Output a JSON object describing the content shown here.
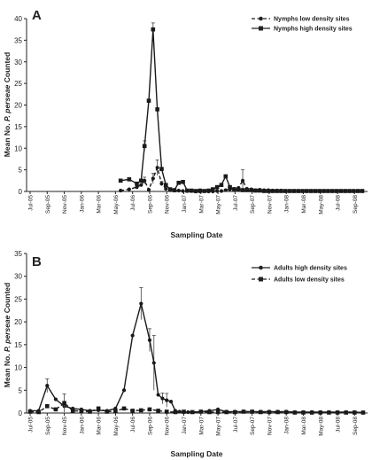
{
  "chart_data": [
    {
      "type": "line",
      "panel_label": "A",
      "xlabel": "Sampling Date",
      "ylabel_parts": [
        "Mean No. ",
        "P. perseae",
        " Counted"
      ],
      "ylim": [
        0,
        40
      ],
      "yticks": [
        0,
        5,
        10,
        15,
        20,
        25,
        30,
        35,
        40
      ],
      "x_tick_labels": [
        "Jul-05",
        "Sep-05",
        "Nov-05",
        "Jan-06",
        "Mar-06",
        "May-06",
        "Jul-06",
        "Sep-06",
        "Nov-06",
        "Jan-07",
        "Mar-07",
        "May-07",
        "Jul-07",
        "Sep-07",
        "Nov-07",
        "Jan-08",
        "Mar-08",
        "May-08",
        "Jul-08",
        "Sep-08"
      ],
      "legend_position": "top-right",
      "series": [
        {
          "name": "Nymphs low density sites",
          "style": "dashed",
          "marker": "circle",
          "x": [
            10.6,
            11.6,
            12.5,
            13.0,
            13.4,
            13.9,
            14.4,
            14.9,
            15.4,
            15.9,
            16.4,
            16.9,
            17.4,
            17.9,
            18.4,
            18.9,
            19.4,
            19.9,
            20.4,
            20.9,
            21.4,
            21.9,
            22.4,
            22.9,
            23.4,
            23.9,
            24.4,
            24.9,
            25.4,
            25.9,
            26.4,
            26.9,
            27.4,
            27.9,
            28.4,
            28.9,
            29.4,
            29.9,
            30.4,
            30.9,
            31.4,
            31.9,
            32.4,
            32.9,
            33.4,
            33.9,
            34.4,
            34.9,
            35.4,
            35.9,
            36.4,
            36.9,
            37.4,
            37.9,
            38.4,
            38.9
          ],
          "y": [
            0.2,
            0.5,
            1.0,
            1.5,
            2.5,
            0.4,
            3.0,
            5.5,
            1.8,
            0.6,
            0.3,
            0.2,
            0.2,
            0.1,
            0.1,
            0.1,
            0.0,
            0.0,
            0.1,
            0.0,
            0.0,
            0.1,
            0.1,
            0.3,
            0.5,
            0.6,
            0.8,
            2.5,
            0.6,
            0.5,
            0.3,
            0.4,
            0.3,
            0.3,
            0.2,
            0.2,
            0.2,
            0.1,
            0.1,
            0.1,
            0.1,
            0.1,
            0.1,
            0.1,
            0.1,
            0.1,
            0.1,
            0.1,
            0.1,
            0.1,
            0.1,
            0.1,
            0.1,
            0.1,
            0.1,
            0.1
          ],
          "error": [
            0,
            0,
            0,
            0,
            0.8,
            0,
            1.2,
            1.8,
            0.5,
            0,
            0,
            0,
            0,
            0,
            0,
            0,
            0,
            0,
            0,
            0,
            0,
            0,
            0,
            0,
            0,
            0,
            0,
            2.5,
            0,
            0,
            0,
            0,
            0,
            0,
            0,
            0,
            0,
            0,
            0,
            0,
            0,
            0,
            0,
            0,
            0,
            0,
            0,
            0,
            0,
            0,
            0,
            0,
            0,
            0,
            0,
            0
          ]
        },
        {
          "name": "Nymphs high density sites",
          "style": "solid",
          "marker": "square",
          "x": [
            10.6,
            11.6,
            12.5,
            13.0,
            13.4,
            13.9,
            14.4,
            14.9,
            15.4,
            15.9,
            16.4,
            16.9,
            17.4,
            17.9,
            18.4,
            18.9,
            19.4,
            19.9,
            20.4,
            20.9,
            21.4,
            21.9,
            22.4,
            22.9,
            23.4,
            23.9,
            24.4,
            24.9,
            25.4,
            25.9,
            26.4,
            26.9,
            27.4,
            27.9,
            28.4,
            28.9,
            29.4,
            29.9,
            30.4,
            30.9,
            31.4,
            31.9,
            32.4,
            32.9,
            33.4,
            33.9,
            34.4,
            34.9,
            35.4,
            35.9,
            36.4,
            36.9,
            37.4,
            37.9,
            38.4,
            38.9
          ],
          "y": [
            2.5,
            2.8,
            1.8,
            2.5,
            10.5,
            21.0,
            37.5,
            19.0,
            5.2,
            1.5,
            0.5,
            0.3,
            2.0,
            2.2,
            0.2,
            0.2,
            0.1,
            0.2,
            0.1,
            0.2,
            0.5,
            1.0,
            1.5,
            3.5,
            1.0,
            0.5,
            0.5,
            0.3,
            0.3,
            0.3,
            0.2,
            0.2,
            0.1,
            0.1,
            0.1,
            0.1,
            0.1,
            0.1,
            0.1,
            0.1,
            0.1,
            0.1,
            0.1,
            0.1,
            0.1,
            0.1,
            0.1,
            0.1,
            0.1,
            0.1,
            0.1,
            0.1,
            0.1,
            0.1,
            0.1,
            0.1
          ],
          "error": [
            0,
            0,
            0,
            0,
            1.2,
            0,
            1.5,
            0,
            0,
            0,
            0,
            0,
            0,
            0,
            0,
            0,
            0,
            0,
            0,
            0,
            0,
            0,
            0,
            0,
            0,
            0,
            0,
            0,
            0,
            0,
            0,
            0,
            0,
            0,
            0,
            0,
            0,
            0,
            0,
            0,
            0,
            0,
            0,
            0,
            0,
            0,
            0,
            0,
            0,
            0,
            0,
            0,
            0,
            0,
            0,
            0
          ]
        }
      ]
    },
    {
      "type": "line",
      "panel_label": "B",
      "xlabel": "Sampling Date",
      "ylabel_parts": [
        "Mean No. ",
        "P. perseae",
        " Counted"
      ],
      "ylim": [
        0,
        35
      ],
      "yticks": [
        0,
        5,
        10,
        15,
        20,
        25,
        30,
        35
      ],
      "x_tick_labels": [
        "Jul-05",
        "Sep-05",
        "Nov-05",
        "Jan-06",
        "Mar-06",
        "May-06",
        "Jul-06",
        "Sep-06",
        "Nov-06",
        "Jan-07",
        "Mar-07",
        "May-07",
        "Jul-07",
        "Sep-07",
        "Nov-07",
        "Jan-08",
        "Mar-08",
        "May-08",
        "Jul-08",
        "Sep-08"
      ],
      "legend_position": "top-right",
      "series": [
        {
          "name": "Adults high density sites",
          "style": "solid",
          "marker": "circle",
          "x": [
            0,
            1,
            2,
            3,
            4,
            5,
            6,
            7,
            8,
            9,
            10,
            11,
            12,
            13,
            14,
            14.5,
            15,
            15.5,
            16,
            16.5,
            17,
            17.5,
            18,
            18.5,
            19,
            20,
            21,
            22,
            23,
            24,
            25,
            26,
            27,
            28,
            29,
            30,
            31,
            32,
            33,
            34,
            35,
            36,
            37,
            38,
            39
          ],
          "y": [
            0.5,
            0.5,
            6.0,
            3.0,
            1.5,
            1.0,
            0.8,
            0.5,
            0.6,
            0.5,
            1.0,
            5.0,
            17.0,
            24.0,
            16.0,
            11.0,
            4.0,
            3.2,
            2.8,
            2.5,
            0.5,
            0.3,
            0.2,
            0.2,
            0.2,
            0.3,
            0.5,
            0.8,
            0.3,
            0.3,
            0.3,
            0.3,
            0.3,
            0.3,
            0.3,
            0.3,
            0.2,
            0.2,
            0.2,
            0.2,
            0.2,
            0.2,
            0.2,
            0.2,
            0.1
          ],
          "error": [
            0,
            0,
            1.5,
            0,
            0,
            0,
            0,
            0,
            0,
            0,
            0,
            0,
            0,
            3.5,
            2.5,
            6.0,
            0,
            1.2,
            1.5,
            0,
            0,
            0,
            0,
            0,
            0,
            0,
            0,
            0,
            0,
            0,
            0,
            0,
            0,
            0,
            0,
            0,
            0,
            0,
            0,
            0,
            0,
            0,
            0,
            0,
            0
          ]
        },
        {
          "name": "Adults low density sites",
          "style": "dashed",
          "marker": "square",
          "x": [
            0,
            1,
            2,
            3,
            4,
            5,
            6,
            7,
            8,
            9,
            10,
            11,
            12,
            13,
            14,
            15,
            16,
            17,
            18,
            19,
            20,
            21,
            22,
            23,
            24,
            25,
            26,
            27,
            28,
            29,
            30,
            31,
            32,
            33,
            34,
            35,
            36,
            37,
            38,
            39
          ],
          "y": [
            0.3,
            0.2,
            1.5,
            0.8,
            2.2,
            0.5,
            0.4,
            0.3,
            1.0,
            0.3,
            0.4,
            1.0,
            0.5,
            0.6,
            0.8,
            0.5,
            0.3,
            0.2,
            0.3,
            0.2,
            0.3,
            0.2,
            0.2,
            0.2,
            0.2,
            0.3,
            0.3,
            0.2,
            0.2,
            0.2,
            0.2,
            0.1,
            0.1,
            0.1,
            0.1,
            0.1,
            0.1,
            0.1,
            0.1,
            0.1
          ],
          "error": [
            0,
            0,
            0,
            0,
            2.0,
            0,
            0,
            0,
            0,
            0,
            0,
            0,
            0,
            0,
            0,
            0,
            0,
            0,
            0,
            0,
            0,
            0,
            0,
            0,
            0,
            0,
            0,
            0,
            0,
            0,
            0,
            0,
            0,
            0,
            0,
            0,
            0,
            0,
            0,
            0
          ]
        }
      ]
    }
  ]
}
